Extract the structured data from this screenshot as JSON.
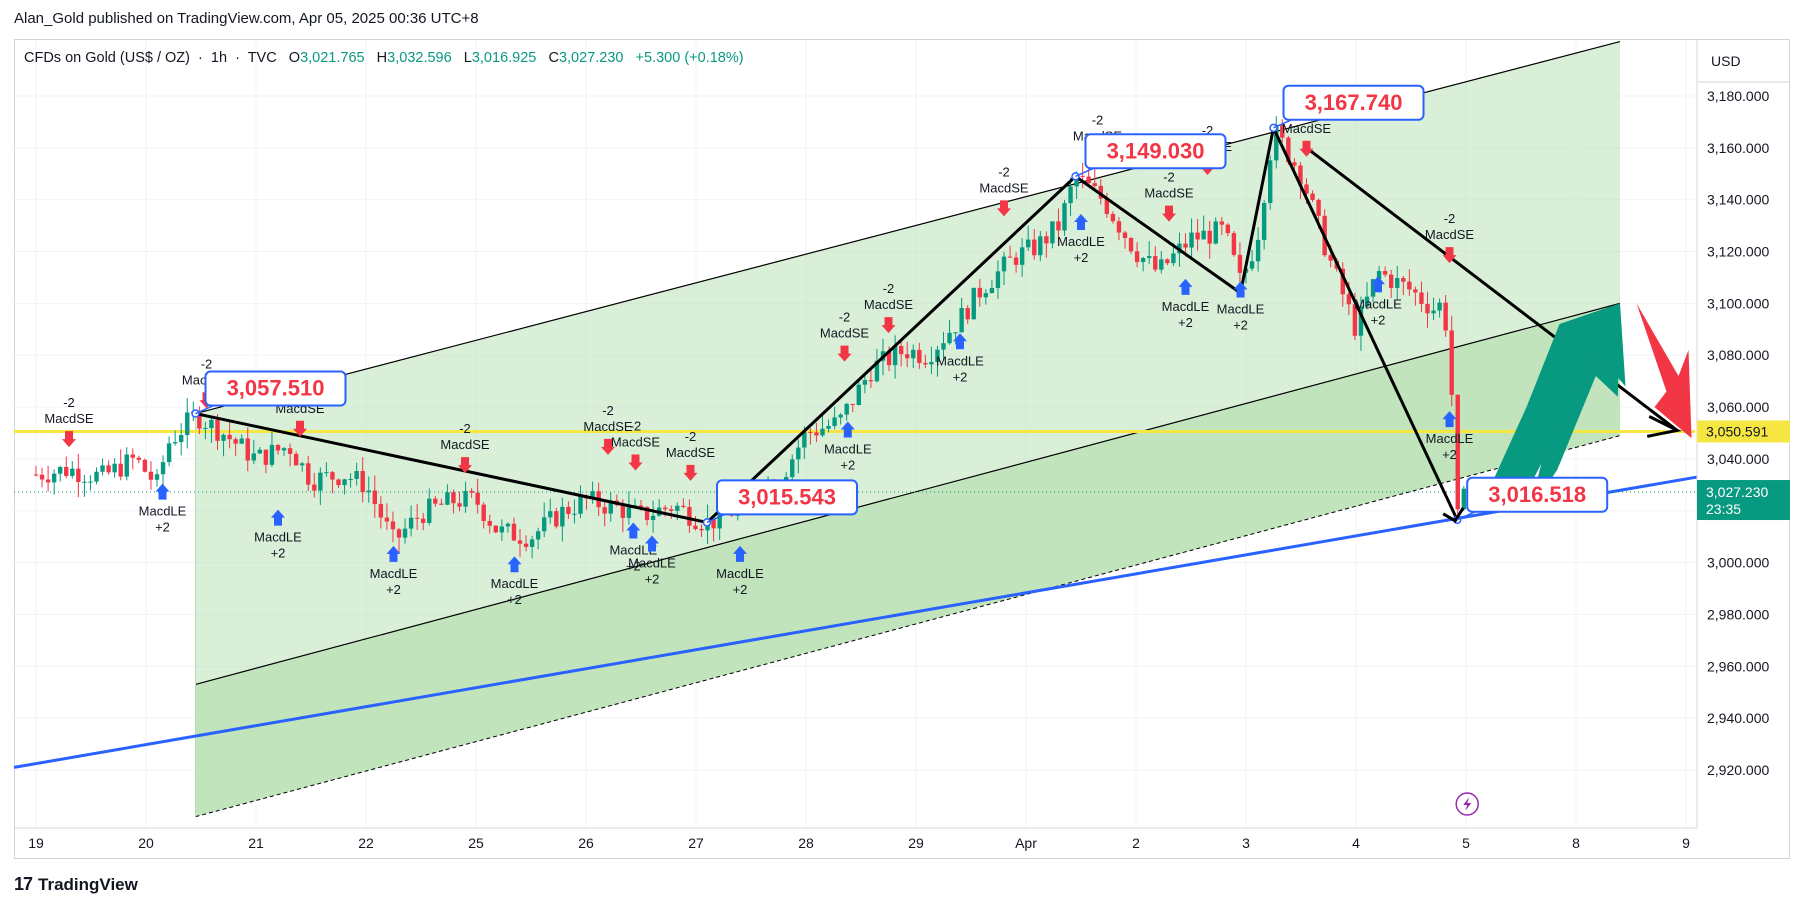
{
  "publisher_line": "Alan_Gold published on TradingView.com, Apr 05, 2025 00:36 UTC+8",
  "symbol": {
    "name": "CFDs on Gold (US$ / OZ)",
    "interval": "1h",
    "source": "TVC",
    "open_label": "O",
    "open": "3,021.765",
    "high_label": "H",
    "high": "3,032.596",
    "low_label": "L",
    "low": "3,016.925",
    "close_label": "C",
    "close": "3,027.230",
    "change": "+5.300 (+0.18%)"
  },
  "footer": {
    "brand": "TradingView",
    "logo_text": "17"
  },
  "colors": {
    "up": "#089981",
    "down": "#f23645",
    "channel_fill": "#b6dfb2",
    "channel_line": "#000000",
    "trendline": "#2962ff",
    "hline": "#f5e642",
    "zigzag": "#000000",
    "label_border": "#2962ff",
    "label_text": "#f23645",
    "buy_signal": "#2962ff",
    "sell_signal": "#f23645",
    "green_arrow": "#089981",
    "red_arrow": "#f23645",
    "lightning": "#9c27b0"
  },
  "chart_data": {
    "type": "candlestick",
    "timeframe": "1h",
    "currency_label": "USD",
    "y_axis": {
      "ticks": [
        "3,180.000",
        "3,160.000",
        "3,140.000",
        "3,120.000",
        "3,100.000",
        "3,080.000",
        "3,060.000",
        "3,040.000",
        "3,020.000",
        "3,000.000",
        "2,980.000",
        "2,960.000",
        "2,940.000",
        "2,920.000"
      ],
      "tick_values": [
        3180,
        3160,
        3140,
        3120,
        3100,
        3080,
        3060,
        3040,
        3020,
        3000,
        2980,
        2960,
        2940,
        2920
      ],
      "range": [
        2905,
        3195
      ]
    },
    "x_axis": {
      "ticks": [
        "19",
        "20",
        "21",
        "22",
        "25",
        "26",
        "27",
        "28",
        "29",
        "Apr",
        "2",
        "3",
        "4",
        "5",
        "8",
        "9"
      ],
      "tick_slots": [
        0,
        1,
        2,
        3,
        4,
        5,
        6,
        7,
        8,
        9,
        10,
        11,
        12,
        13,
        14,
        15
      ]
    },
    "price_tags": [
      {
        "text": "3,050.591",
        "value": 3050.591,
        "kind": "yellow-line"
      },
      {
        "text": "3,027.230",
        "value": 3027.23,
        "kind": "last-price",
        "countdown": "23:35"
      }
    ],
    "horizontal_level": 3050.591,
    "price_callouts": [
      {
        "text": "3,057.510",
        "slot": 1.45,
        "value": 3057.51
      },
      {
        "text": "3,015.543",
        "slot": 6.1,
        "value": 3015.543
      },
      {
        "text": "3,149.030",
        "slot": 9.45,
        "value": 3149.03
      },
      {
        "text": "3,167.740",
        "slot": 11.25,
        "value": 3167.74
      },
      {
        "text": "3,016.518",
        "slot": 12.92,
        "value": 3016.518
      }
    ],
    "zigzag": [
      {
        "slot": 1.45,
        "value": 3057.5
      },
      {
        "slot": 6.1,
        "value": 3015.5
      },
      {
        "slot": 9.45,
        "value": 3149.0
      },
      {
        "slot": 10.95,
        "value": 3104.0
      },
      {
        "slot": 11.25,
        "value": 3167.7
      },
      {
        "slot": 12.92,
        "value": 3016.5
      }
    ],
    "channel": {
      "start_slot": 1.45,
      "end_slot": 14.4,
      "upper": [
        3057.5,
        3201.0
      ],
      "middle": [
        2953.0,
        3100.0
      ],
      "lower": [
        2902.0,
        3049.0
      ]
    },
    "support_line": {
      "slots": [
        -0.2,
        15.1
      ],
      "values": [
        2921.0,
        3033.0
      ]
    },
    "projection_arrows": [
      {
        "kind": "black",
        "from": [
          12.92,
          3020.0
        ],
        "to": [
          12.8,
          3013.0
        ]
      },
      {
        "kind": "black",
        "from": [
          11.55,
          3160.0
        ],
        "to": [
          14.9,
          3051.0
        ]
      }
    ],
    "signals": [
      {
        "label": "MacdSE",
        "qty": "-2",
        "side": "sell",
        "slot": 0.3,
        "value": 3043
      },
      {
        "label": "MacdLE",
        "qty": "+2",
        "side": "buy",
        "slot": 1.15,
        "value": 3032
      },
      {
        "label": "MacdSE",
        "qty": "-2",
        "side": "sell",
        "slot": 1.55,
        "value": 3058
      },
      {
        "label": "MacdSE",
        "qty": "-2",
        "side": "sell",
        "slot": 2.4,
        "value": 3047
      },
      {
        "label": "MacdLE",
        "qty": "+2",
        "side": "buy",
        "slot": 2.2,
        "value": 3022
      },
      {
        "label": "MacdLE",
        "qty": "+2",
        "side": "buy",
        "slot": 3.25,
        "value": 3008
      },
      {
        "label": "MacdSE",
        "qty": "-2",
        "side": "sell",
        "slot": 3.9,
        "value": 3033
      },
      {
        "label": "MacdLE",
        "qty": "+2",
        "side": "buy",
        "slot": 4.35,
        "value": 3004
      },
      {
        "label": "MacdSE",
        "qty": "-2",
        "side": "sell",
        "slot": 5.2,
        "value": 3040
      },
      {
        "label": "MacdSE",
        "qty": "-2",
        "side": "sell",
        "slot": 5.45,
        "value": 3034
      },
      {
        "label": "MacdLE",
        "qty": "+2",
        "side": "buy",
        "slot": 5.43,
        "value": 3017
      },
      {
        "label": "MacdLE",
        "qty": "+2",
        "side": "buy",
        "slot": 5.6,
        "value": 3012
      },
      {
        "label": "MacdSE",
        "qty": "-2",
        "side": "sell",
        "slot": 5.95,
        "value": 3030
      },
      {
        "label": "MacdLE",
        "qty": "+2",
        "side": "buy",
        "slot": 6.4,
        "value": 3008
      },
      {
        "label": "MacdSE",
        "qty": "-2",
        "side": "sell",
        "slot": 7.35,
        "value": 3076
      },
      {
        "label": "MacdLE",
        "qty": "+2",
        "side": "buy",
        "slot": 7.38,
        "value": 3056
      },
      {
        "label": "MacdSE",
        "qty": "-2",
        "side": "sell",
        "slot": 7.75,
        "value": 3087
      },
      {
        "label": "MacdLE",
        "qty": "+2",
        "side": "buy",
        "slot": 8.4,
        "value": 3090
      },
      {
        "label": "MacdSE",
        "qty": "-2",
        "side": "sell",
        "slot": 8.8,
        "value": 3132
      },
      {
        "label": "MacdLE",
        "qty": "+2",
        "side": "buy",
        "slot": 9.5,
        "value": 3136
      },
      {
        "label": "MacdSE",
        "qty": "-2",
        "side": "sell",
        "slot": 9.65,
        "value": 3152
      },
      {
        "label": "MacdSE",
        "qty": "-2",
        "side": "sell",
        "slot": 10.3,
        "value": 3130
      },
      {
        "label": "MacdLE",
        "qty": "+2",
        "side": "buy",
        "slot": 10.45,
        "value": 3111
      },
      {
        "label": "MacdSE",
        "qty": "-2",
        "side": "sell",
        "slot": 10.65,
        "value": 3148
      },
      {
        "label": "MacdLE",
        "qty": "+2",
        "side": "buy",
        "slot": 10.95,
        "value": 3110
      },
      {
        "label": "MacdSE",
        "qty": "-2",
        "side": "sell",
        "slot": 11.55,
        "value": 3155
      },
      {
        "label": "MacdLE",
        "qty": "+2",
        "side": "buy",
        "slot": 12.2,
        "value": 3112
      },
      {
        "label": "MacdSE",
        "qty": "-2",
        "side": "sell",
        "slot": 12.85,
        "value": 3114
      },
      {
        "label": "MacdLE",
        "qty": "+2",
        "side": "buy",
        "slot": 12.85,
        "value": 3060
      }
    ],
    "price_path": [
      [
        0.0,
        3034
      ],
      [
        0.3,
        3036
      ],
      [
        0.6,
        3033
      ],
      [
        0.9,
        3040
      ],
      [
        1.1,
        3030
      ],
      [
        1.2,
        3046
      ],
      [
        1.45,
        3057
      ],
      [
        1.7,
        3050
      ],
      [
        2.0,
        3040
      ],
      [
        2.3,
        3045
      ],
      [
        2.5,
        3032
      ],
      [
        2.8,
        3034
      ],
      [
        3.0,
        3030
      ],
      [
        3.25,
        3008
      ],
      [
        3.5,
        3019
      ],
      [
        3.8,
        3024
      ],
      [
        4.0,
        3024
      ],
      [
        4.2,
        3012
      ],
      [
        4.5,
        3010
      ],
      [
        4.8,
        3020
      ],
      [
        5.0,
        3024
      ],
      [
        5.3,
        3021
      ],
      [
        5.5,
        3018
      ],
      [
        5.8,
        3022
      ],
      [
        6.1,
        3015
      ],
      [
        6.3,
        3019
      ],
      [
        6.6,
        3028
      ],
      [
        6.8,
        3035
      ],
      [
        7.0,
        3050
      ],
      [
        7.3,
        3054
      ],
      [
        7.6,
        3075
      ],
      [
        7.9,
        3082
      ],
      [
        8.1,
        3080
      ],
      [
        8.4,
        3094
      ],
      [
        8.6,
        3106
      ],
      [
        8.9,
        3118
      ],
      [
        9.1,
        3122
      ],
      [
        9.3,
        3130
      ],
      [
        9.45,
        3149
      ],
      [
        9.7,
        3140
      ],
      [
        10.0,
        3120
      ],
      [
        10.2,
        3112
      ],
      [
        10.5,
        3125
      ],
      [
        10.8,
        3128
      ],
      [
        10.95,
        3108
      ],
      [
        11.1,
        3125
      ],
      [
        11.25,
        3167
      ],
      [
        11.5,
        3150
      ],
      [
        11.75,
        3118
      ],
      [
        12.0,
        3090
      ],
      [
        12.2,
        3112
      ],
      [
        12.5,
        3105
      ],
      [
        12.7,
        3098
      ],
      [
        12.8,
        3100
      ],
      [
        12.88,
        3060
      ],
      [
        12.92,
        3016
      ],
      [
        13.0,
        3027
      ]
    ]
  }
}
